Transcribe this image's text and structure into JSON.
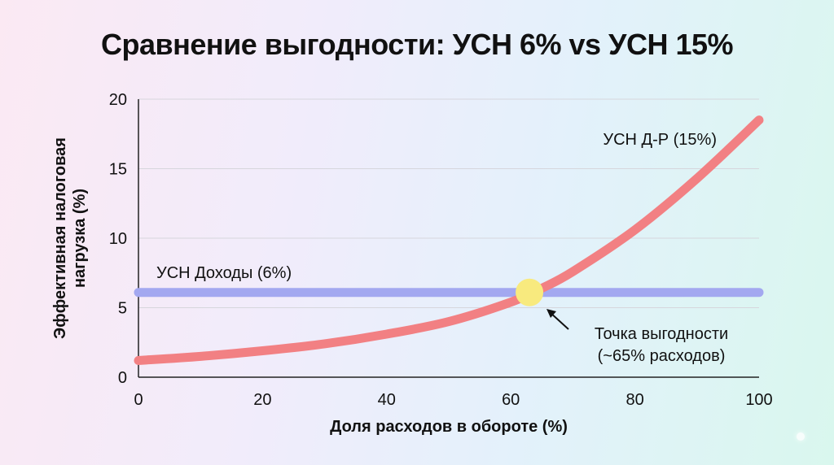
{
  "chart_data": {
    "type": "line",
    "title": "Сравнение выгодности: УСН 6% vs УСН 15%",
    "xlabel": "Доля расходов в обороте (%)",
    "ylabel": "Эффективная налоговая нагрузка (%)",
    "xlim": [
      0,
      100
    ],
    "ylim": [
      0,
      20
    ],
    "x_ticks": [
      0,
      20,
      40,
      60,
      80,
      100
    ],
    "y_ticks": [
      0,
      5,
      10,
      15,
      20
    ],
    "grid": "horizontal",
    "series": [
      {
        "name": "УСН Доходы (6%)",
        "color": "#a3a8f0",
        "x": [
          0,
          100
        ],
        "y": [
          6.1,
          6.1
        ]
      },
      {
        "name": "УСН Д-Р (15%)",
        "color": "#f28083",
        "x": [
          0,
          10,
          20,
          30,
          40,
          50,
          60,
          65,
          70,
          80,
          90,
          100
        ],
        "y": [
          1.2,
          1.5,
          1.9,
          2.4,
          3.1,
          4.0,
          5.4,
          6.4,
          7.6,
          10.6,
          14.3,
          18.5
        ]
      }
    ],
    "annotations": [
      {
        "text_lines": [
          "Точка выгодности",
          "(~65% расходов)"
        ],
        "point": {
          "x": 63,
          "y": 6.1
        },
        "marker_color": "#f8ea7e"
      }
    ]
  }
}
